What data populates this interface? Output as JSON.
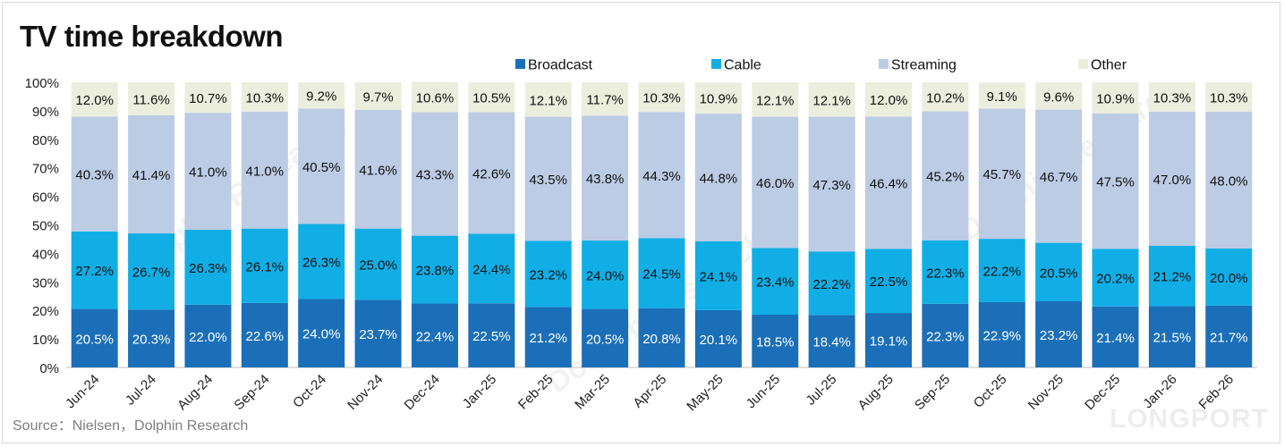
{
  "title": "TV time breakdown",
  "source": "Source：Nielsen，Dolphin Research",
  "watermark": "LONGPORT",
  "colors": {
    "Broadcast": "#1a6fb8",
    "Cable": "#11aee6",
    "Streaming": "#bccce4",
    "Other": "#ebeedd"
  },
  "chart_data": {
    "type": "bar",
    "stacked": true,
    "percent": true,
    "title": "TV time breakdown",
    "ylim": [
      0,
      100
    ],
    "yticks": [
      "0%",
      "10%",
      "20%",
      "30%",
      "40%",
      "50%",
      "60%",
      "70%",
      "80%",
      "90%",
      "100%"
    ],
    "legend_position": "top",
    "categories": [
      "Jun-24",
      "Jul-24",
      "Aug-24",
      "Sep-24",
      "Oct-24",
      "Nov-24",
      "Dec-24",
      "Jan-25",
      "Feb-25",
      "Mar-25",
      "Apr-25",
      "May-25",
      "Jun-25",
      "Jul-25",
      "Aug-25",
      "Sep-25",
      "Oct-25",
      "Nov-25",
      "Dec-25",
      "Jan-26",
      "Feb-26"
    ],
    "series": [
      {
        "name": "Broadcast",
        "values": [
          20.5,
          20.3,
          22.0,
          22.6,
          24.0,
          23.7,
          22.4,
          22.5,
          21.2,
          20.5,
          20.8,
          20.1,
          18.5,
          18.4,
          19.1,
          22.3,
          22.9,
          23.2,
          21.4,
          21.5,
          21.7
        ],
        "labels": [
          "20.5%",
          "20.3%",
          "22.0%",
          "22.6%",
          "24.0%",
          "23.7%",
          "22.4%",
          "22.5%",
          "21.2%",
          "20.5%",
          "20.8%",
          "20.1%",
          "18.5%",
          "18.4%",
          "19.1%",
          "22.3%",
          "22.9%",
          "23.2%",
          "21.4%",
          "21.5%",
          "21.7%"
        ]
      },
      {
        "name": "Cable",
        "values": [
          27.2,
          26.7,
          26.3,
          26.1,
          26.3,
          25.0,
          23.8,
          24.4,
          23.2,
          24.0,
          24.5,
          24.1,
          23.4,
          22.2,
          22.5,
          22.3,
          22.2,
          20.5,
          20.2,
          21.2,
          20.0
        ],
        "labels": [
          "27.2%",
          "26.7%",
          "26.3%",
          "26.1%",
          "26.3%",
          "25.0%",
          "23.8%",
          "24.4%",
          "23.2%",
          "24.0%",
          "24.5%",
          "24.1%",
          "23.4%",
          "22.2%",
          "22.5%",
          "22.3%",
          "22.2%",
          "20.5%",
          "20.2%",
          "21.2%",
          "20.0%"
        ]
      },
      {
        "name": "Streaming",
        "values": [
          40.3,
          41.4,
          41.0,
          41.0,
          40.5,
          41.6,
          43.3,
          42.6,
          43.5,
          43.8,
          44.3,
          44.8,
          46.0,
          47.3,
          46.4,
          45.2,
          45.7,
          46.7,
          47.5,
          47.0,
          48.0
        ],
        "labels": [
          "40.3%",
          "41.4%",
          "41.0%",
          "41.0%",
          "40.5%",
          "41.6%",
          "43.3%",
          "42.6%",
          "43.5%",
          "43.8%",
          "44.3%",
          "44.8%",
          "46.0%",
          "47.3%",
          "46.4%",
          "45.2%",
          "45.7%",
          "46.7%",
          "47.5%",
          "47.0%",
          "48.0%"
        ]
      },
      {
        "name": "Other",
        "values": [
          12.0,
          11.6,
          10.7,
          10.3,
          9.2,
          9.7,
          10.6,
          10.5,
          12.1,
          11.7,
          10.3,
          10.9,
          12.1,
          12.1,
          12.0,
          10.2,
          9.1,
          9.6,
          10.9,
          10.3,
          10.3
        ],
        "labels": [
          "12.0%",
          "11.6%",
          "10.7%",
          "10.3%",
          "9.2%",
          "9.7%",
          "10.6%",
          "10.5%",
          "12.1%",
          "11.7%",
          "10.3%",
          "10.9%",
          "12.1%",
          "12.1%",
          "12.0%",
          "10.2%",
          "9.1%",
          "9.6%",
          "10.9%",
          "10.3%",
          "10.3%"
        ]
      }
    ]
  }
}
